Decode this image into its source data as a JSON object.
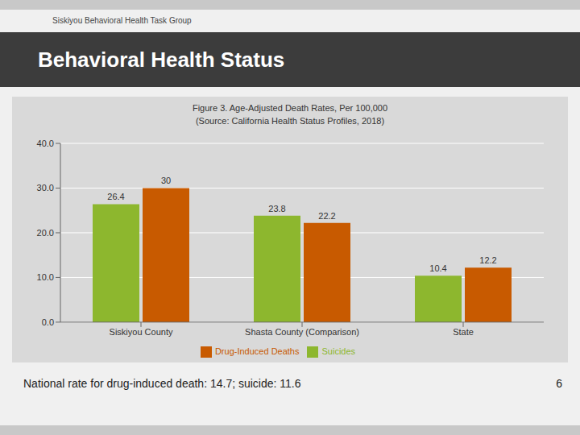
{
  "chart_data": {
    "type": "bar",
    "title": "Figure 3. Age-Adjusted Death Rates, Per 100,000",
    "subtitle": "(Source: California Health Status Profiles, 2018)",
    "annotations": [
      "Siskiyou Behavioral Health Task Group",
      "Behavioral Health Status",
      "National rate for drug-induced death:  14.7; suicide:  11.6",
      "6"
    ],
    "categories": [
      "Siskiyou County",
      "Shasta County (Comparison)",
      "State"
    ],
    "series": [
      {
        "name": "Suicides",
        "color": "#8db72e",
        "values": [
          26.4,
          23.8,
          10.4
        ]
      },
      {
        "name": "Drug-Induced Deaths",
        "color": "#c85a00",
        "values": [
          30.0,
          22.2,
          12.2
        ]
      }
    ],
    "ylim": [
      0,
      40
    ],
    "yticks": [
      {
        "value": 0,
        "label": "0.0"
      },
      {
        "value": 10,
        "label": "10.0"
      },
      {
        "value": 20,
        "label": "20.0"
      },
      {
        "value": 30,
        "label": "30.0"
      },
      {
        "value": 40,
        "label": "40.0"
      }
    ],
    "grid": true,
    "legend": "bottom",
    "data_labels": true
  }
}
